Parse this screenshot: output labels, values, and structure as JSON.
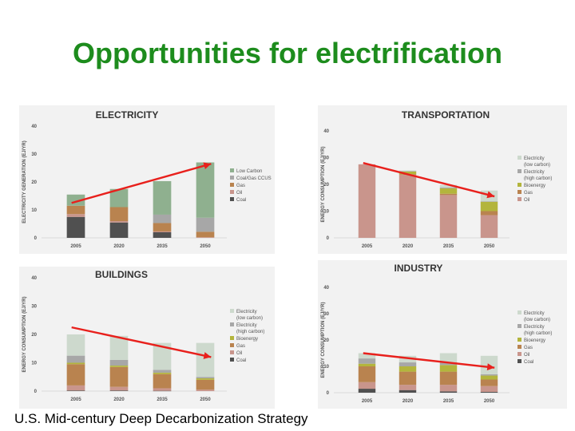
{
  "slide": {
    "title": "Opportunities for electrification",
    "footer": "U.S. Mid-century Deep Decarbonization Strategy"
  },
  "colors": {
    "trend_arrow": "#e8201c",
    "title_green": "#1d8c1d"
  },
  "chart_data": [
    {
      "type": "bar",
      "stacked": true,
      "title": "ELECTRICITY",
      "ylabel": "ELECTRICITY GENERATION  (EJ/YR)",
      "categories": [
        "2005",
        "2020",
        "2035",
        "2050"
      ],
      "ylim": [
        0,
        40
      ],
      "yticks": [
        0,
        10,
        20,
        30,
        40
      ],
      "legend_position": "right",
      "series": [
        {
          "name": "Coal",
          "color": "#505050",
          "values": [
            7.5,
            5.5,
            2.0,
            0.0
          ]
        },
        {
          "name": "Oil",
          "color": "#c9958c",
          "values": [
            1.0,
            0.5,
            0.3,
            0.2
          ]
        },
        {
          "name": "Gas",
          "color": "#b9834f",
          "values": [
            3.0,
            5.0,
            3.0,
            2.0
          ]
        },
        {
          "name": "Coal/Gas CCUS",
          "color": "#a7a7a7",
          "values": [
            0.0,
            0.0,
            3.0,
            5.0
          ]
        },
        {
          "name": "Low Carbon",
          "color": "#8fb08f",
          "values": [
            4.0,
            6.5,
            12.0,
            19.8
          ]
        }
      ],
      "trend": {
        "from": [
          "2005",
          12.5
        ],
        "to": [
          "2050",
          26.5
        ]
      }
    },
    {
      "type": "bar",
      "stacked": true,
      "title": "TRANSPORTATION",
      "ylabel": "ENERGY CONSUMPTION  (EJ/YR)",
      "categories": [
        "2005",
        "2020",
        "2035",
        "2050"
      ],
      "ylim": [
        0,
        40
      ],
      "yticks": [
        0,
        10,
        20,
        30,
        40
      ],
      "legend_position": "right",
      "series": [
        {
          "name": "Oil",
          "color": "#c9958c",
          "values": [
            27.5,
            23.5,
            16.0,
            8.5
          ]
        },
        {
          "name": "Gas",
          "color": "#b9834f",
          "values": [
            0.0,
            0.3,
            0.5,
            1.5
          ]
        },
        {
          "name": "Bioenergy",
          "color": "#b3b53c",
          "values": [
            0.0,
            1.0,
            2.0,
            3.5
          ]
        },
        {
          "name": "Electricity (high carbon)",
          "color": "#a7a7a7",
          "values": [
            0.0,
            0.2,
            0.3,
            0.2
          ]
        },
        {
          "name": "Electricity (low carbon)",
          "color": "#cdd9cd",
          "values": [
            0.0,
            0.2,
            1.0,
            4.0
          ]
        }
      ],
      "trend": {
        "from": [
          "2005",
          28.0
        ],
        "to": [
          "2050",
          15.5
        ]
      }
    },
    {
      "type": "bar",
      "stacked": true,
      "title": "BUILDINGS",
      "ylabel": "ENERGY CONSUMPTION  (EJ/YR)",
      "categories": [
        "2005",
        "2020",
        "2035",
        "2050"
      ],
      "ylim": [
        0,
        40
      ],
      "yticks": [
        0,
        10,
        20,
        30,
        40
      ],
      "legend_position": "right",
      "series": [
        {
          "name": "Coal",
          "color": "#505050",
          "values": [
            0.2,
            0.2,
            0.1,
            0.0
          ]
        },
        {
          "name": "Oil",
          "color": "#c9958c",
          "values": [
            1.8,
            1.3,
            0.9,
            0.5
          ]
        },
        {
          "name": "Gas",
          "color": "#b9834f",
          "values": [
            7.5,
            7.0,
            5.0,
            3.5
          ]
        },
        {
          "name": "Bioenergy",
          "color": "#b3b53c",
          "values": [
            0.5,
            0.5,
            0.5,
            0.5
          ]
        },
        {
          "name": "Electricity (high carbon)",
          "color": "#a7a7a7",
          "values": [
            2.5,
            2.0,
            1.0,
            0.5
          ]
        },
        {
          "name": "Electricity (low carbon)",
          "color": "#cdd9cd",
          "values": [
            7.5,
            8.5,
            9.5,
            12.0
          ]
        }
      ],
      "trend": {
        "from": [
          "2005",
          22.5
        ],
        "to": [
          "2050",
          12.0
        ]
      }
    },
    {
      "type": "bar",
      "stacked": true,
      "title": "INDUSTRY",
      "ylabel": "ENERGY CONSUMPTION  (EJ/YR)",
      "categories": [
        "2005",
        "2020",
        "2035",
        "2050"
      ],
      "ylim": [
        0,
        40
      ],
      "yticks": [
        0,
        10,
        20,
        30,
        40
      ],
      "legend_position": "right",
      "series": [
        {
          "name": "Coal",
          "color": "#505050",
          "values": [
            1.5,
            1.0,
            0.5,
            0.3
          ]
        },
        {
          "name": "Oil",
          "color": "#c9958c",
          "values": [
            2.5,
            2.0,
            2.5,
            2.2
          ]
        },
        {
          "name": "Gas",
          "color": "#b9834f",
          "values": [
            6.0,
            5.0,
            5.0,
            2.5
          ]
        },
        {
          "name": "Bioenergy",
          "color": "#b3b53c",
          "values": [
            1.0,
            2.0,
            2.5,
            1.5
          ]
        },
        {
          "name": "Electricity (high carbon)",
          "color": "#a7a7a7",
          "values": [
            2.0,
            1.5,
            1.0,
            0.5
          ]
        },
        {
          "name": "Electricity (low carbon)",
          "color": "#cdd9cd",
          "values": [
            2.0,
            2.5,
            3.5,
            7.0
          ]
        }
      ],
      "trend": {
        "from": [
          "2005",
          15.0
        ],
        "to": [
          "2050",
          9.5
        ]
      }
    }
  ]
}
